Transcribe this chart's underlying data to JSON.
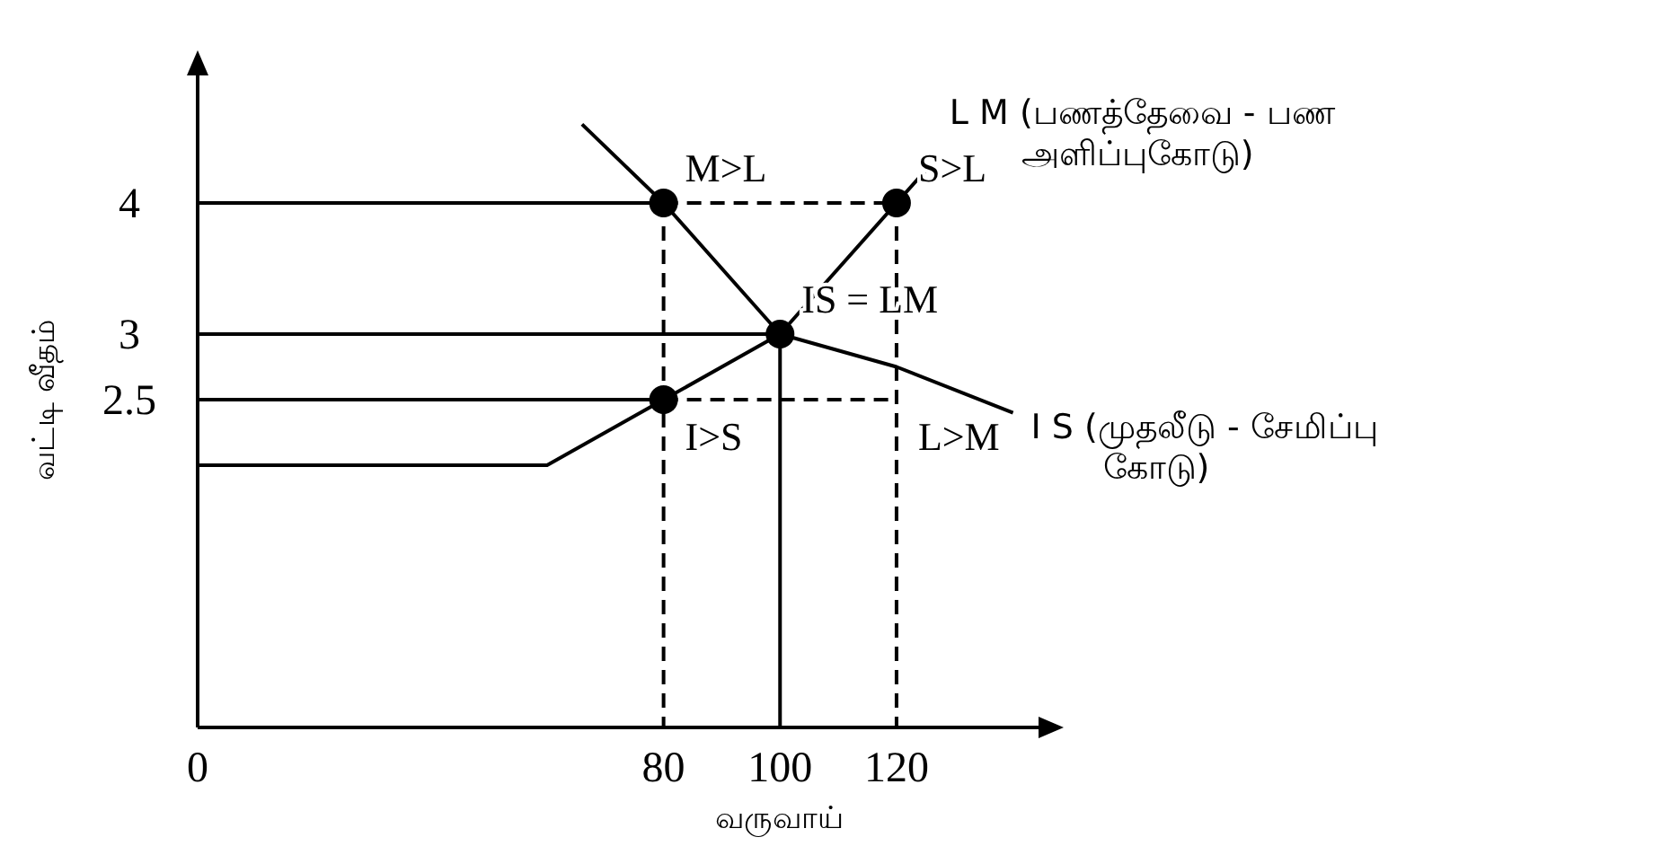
{
  "chart_data": {
    "type": "line",
    "xlabel": "வருவாய்",
    "ylabel": "வட்டி வீதம்",
    "xlim": [
      0,
      145
    ],
    "ylim": [
      0,
      5
    ],
    "xticks": [
      0,
      80,
      100,
      120
    ],
    "yticks": [
      2.5,
      3,
      4
    ],
    "grid": false,
    "series": [
      {
        "name": "L M (பணத்தேவை - பண அளிப்புகோடு)",
        "color": "#000000",
        "line_style": "solid",
        "x": [
          0,
          60,
          80,
          100,
          120,
          126
        ],
        "values": [
          2,
          2,
          2.5,
          3,
          4,
          4.3
        ]
      },
      {
        "name": "I S (முதலீடு - சேமிப்பு கோடு)",
        "color": "#000000",
        "line_style": "solid",
        "x": [
          66,
          80,
          100,
          120,
          140
        ],
        "values": [
          4.6,
          4,
          3,
          2.75,
          2.4
        ]
      },
      {
        "color": "#000000",
        "line_style": "solid",
        "x": [
          0,
          80
        ],
        "values": [
          4,
          4
        ]
      },
      {
        "color": "#000000",
        "line_style": "solid",
        "x": [
          0,
          100,
          100
        ],
        "values": [
          3,
          3,
          0
        ]
      },
      {
        "color": "#000000",
        "line_style": "solid",
        "x": [
          0,
          80
        ],
        "values": [
          2.5,
          2.5
        ]
      },
      {
        "color": "#000000",
        "line_style": "dashed",
        "x": [
          80,
          120
        ],
        "values": [
          4,
          4
        ]
      },
      {
        "color": "#000000",
        "line_style": "dashed",
        "x": [
          80,
          120
        ],
        "values": [
          2.5,
          2.5
        ]
      },
      {
        "color": "#000000",
        "line_style": "dashed",
        "x": [
          80,
          80
        ],
        "values": [
          4,
          0
        ]
      },
      {
        "color": "#000000",
        "line_style": "dashed",
        "x": [
          120,
          120
        ],
        "values": [
          4,
          0
        ]
      },
      {
        "type": "scatter",
        "marker": "circle",
        "color": "#000000",
        "x": [
          80,
          120,
          100,
          80
        ],
        "values": [
          4,
          4,
          3,
          2.5
        ]
      }
    ],
    "annotations": [
      {
        "text": "M>L",
        "x": 80,
        "y": 4
      },
      {
        "text": "S>L",
        "x": 120,
        "y": 4
      },
      {
        "text": "IS = LM",
        "x": 100,
        "y": 3
      },
      {
        "text": "I>S",
        "x": 80,
        "y": 2.5
      },
      {
        "text": "L>M",
        "x": 120,
        "y": 2.5
      }
    ]
  }
}
